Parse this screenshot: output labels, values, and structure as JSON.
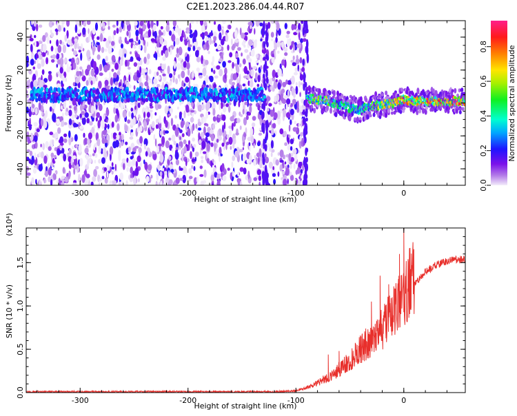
{
  "title": "C2E1.2023.286.04.44.R07",
  "chart_data": [
    {
      "type": "heatmap",
      "description_role": "spectrogram",
      "xlabel": "Height of straight line (km)",
      "ylabel": "Frequency (Hz)",
      "xlim": [
        -350,
        57
      ],
      "ylim": [
        -50,
        50
      ],
      "xticks": [
        -300,
        -200,
        -100,
        0
      ],
      "yticks": [
        -40,
        -20,
        0,
        20,
        40
      ],
      "colorbar": {
        "label": "Normalized spectral amplitude",
        "range": [
          0.0,
          0.95
        ],
        "ticks": [
          "0.0",
          "0.2",
          "0.4",
          "0.6",
          "0.8"
        ],
        "colormap": "rainbow (purple → blue → cyan → green → yellow → red → magenta)"
      },
      "features": {
        "left_region_noise_x_range": [
          -350,
          -92
        ],
        "signal_band_left": {
          "x_range": [
            -345,
            -128
          ],
          "frequency_center": 5,
          "amplitude_peak": 0.35
        },
        "signal_band_right": {
          "x": [
            -90,
            -80,
            -70,
            -60,
            -50,
            -40,
            -30,
            -20,
            -10,
            0,
            10,
            20,
            30,
            40,
            50,
            57
          ],
          "frequency_center": [
            3,
            2,
            1,
            -1,
            -3,
            -4,
            -2,
            -1,
            0,
            2,
            1,
            1,
            1,
            1,
            1,
            1
          ],
          "amplitude_peak": [
            0.5,
            0.7,
            0.6,
            0.5,
            0.5,
            0.5,
            0.6,
            0.7,
            0.8,
            0.85,
            0.8,
            0.9,
            0.9,
            0.95,
            0.95,
            0.95
          ]
        }
      }
    },
    {
      "type": "line",
      "xlabel": "Height of straight line (km)",
      "ylabel": "SNR (10 * v/v)",
      "yscale_label": "(x10⁴)",
      "xlim": [
        -350,
        57
      ],
      "ylim": [
        0,
        1.9
      ],
      "xticks": [
        -300,
        -200,
        -100,
        0
      ],
      "yticks": [
        "0.0",
        "0.5",
        "1.0",
        "1.5"
      ],
      "series": [
        {
          "color": "#e8302c",
          "x": [
            -350,
            -300,
            -250,
            -200,
            -150,
            -120,
            -100,
            -90,
            -80,
            -70,
            -60,
            -50,
            -40,
            -30,
            -20,
            -10,
            -5,
            0,
            10,
            20,
            30,
            40,
            50,
            57
          ],
          "y": [
            0.01,
            0.01,
            0.01,
            0.01,
            0.01,
            0.01,
            0.02,
            0.05,
            0.1,
            0.16,
            0.24,
            0.33,
            0.45,
            0.55,
            0.66,
            0.82,
            0.92,
            1.0,
            1.24,
            1.38,
            1.46,
            1.5,
            1.52,
            1.52
          ],
          "spikes": [
            {
              "x": 0,
              "y": 1.9
            },
            {
              "x": -4,
              "y": 1.6
            },
            {
              "x": -22,
              "y": 1.35
            },
            {
              "x": -14,
              "y": 1.25
            },
            {
              "x": -8,
              "y": 1.2
            },
            {
              "x": -30,
              "y": 1.05
            },
            {
              "x": -60,
              "y": 0.48
            },
            {
              "x": -70,
              "y": 0.44
            }
          ]
        }
      ]
    }
  ]
}
